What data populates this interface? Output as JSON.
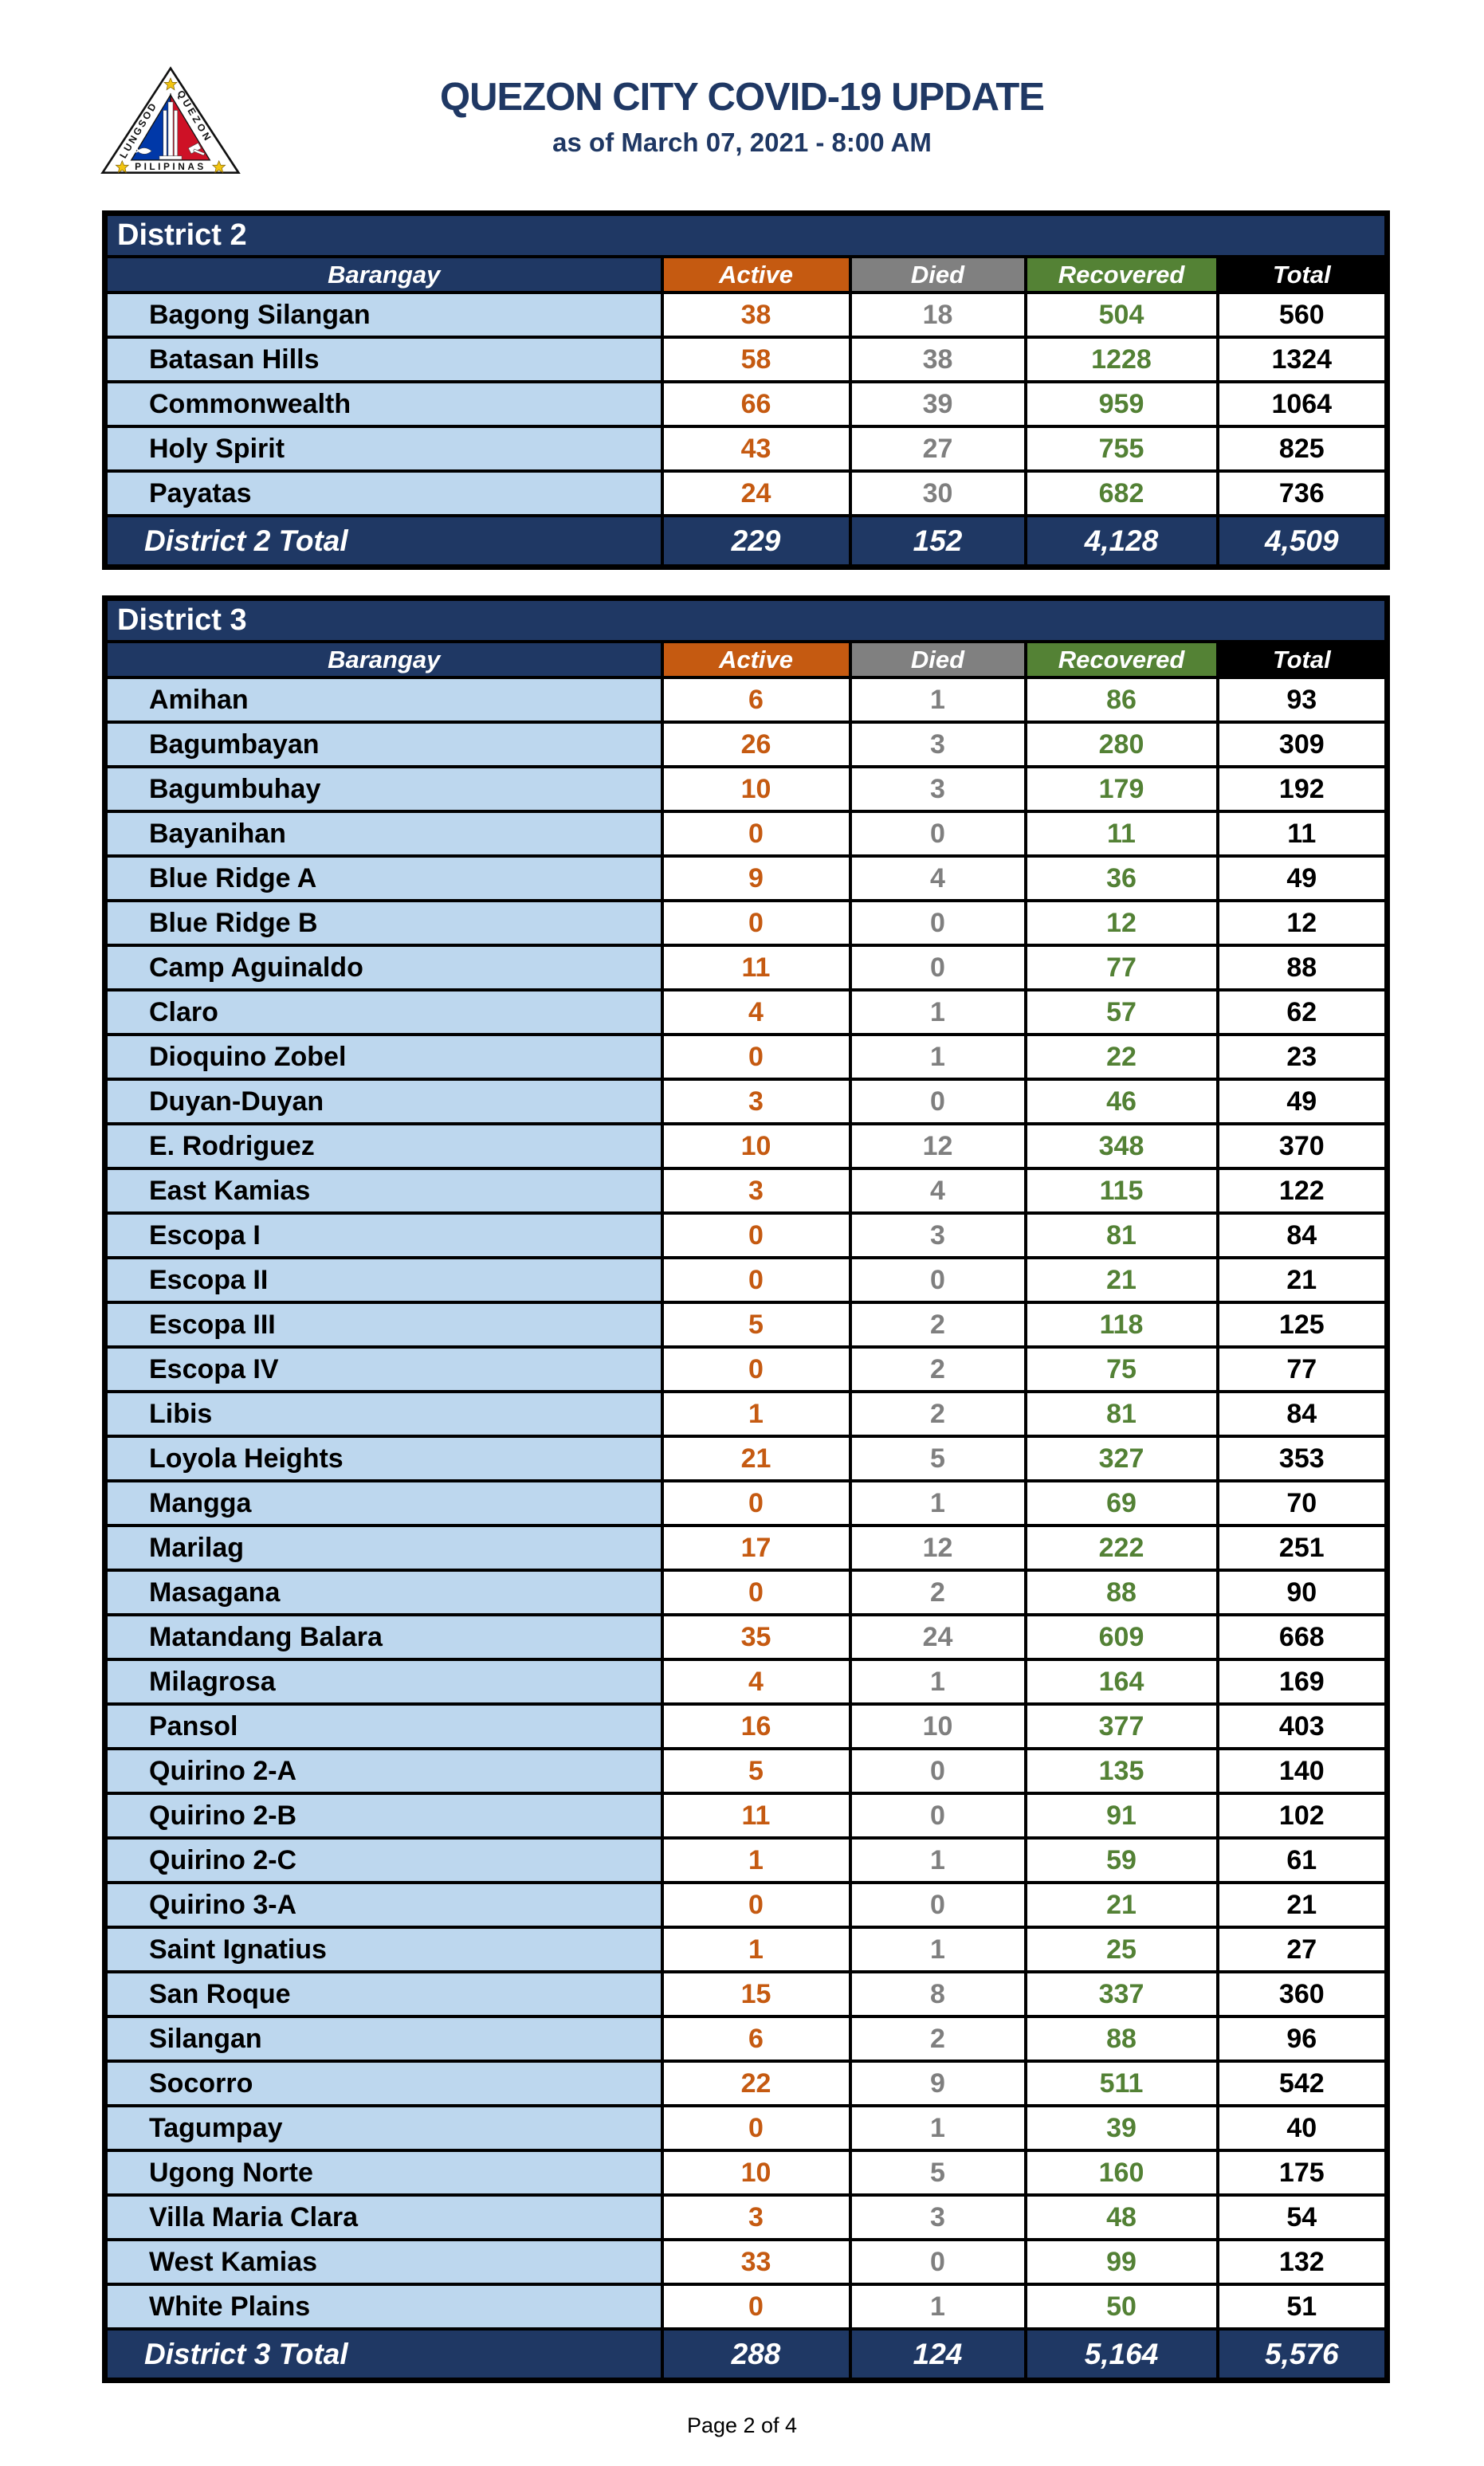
{
  "header": {
    "title": "QUEZON CITY COVID-19 UPDATE",
    "subtitle": "as of March 07, 2021 - 8:00 AM"
  },
  "logo": {
    "name": "quezon-city-seal",
    "text_left": "LUNGSOD",
    "text_right": "QUEZON",
    "text_bottom": "PILIPINAS"
  },
  "columns": [
    "Barangay",
    "Active",
    "Died",
    "Recovered",
    "Total"
  ],
  "colors": {
    "navy": "#1F3864",
    "header_bg": [
      "#1F3864",
      "#C55A11",
      "#808080",
      "#548235",
      "#000000"
    ],
    "value_colors": [
      "#C55A11",
      "#7F7F7F",
      "#538135",
      "#000000"
    ],
    "name_cell_bg": "#BDD7EE",
    "title_text": "#1F3864",
    "seal_blue": "#0038A8",
    "seal_red": "#CE1126",
    "seal_gold": "#F2C511"
  },
  "tables": [
    {
      "district": "District 2",
      "total_label": "District 2 Total",
      "rows": [
        [
          "Bagong Silangan",
          38,
          18,
          504,
          560
        ],
        [
          "Batasan Hills",
          58,
          38,
          1228,
          1324
        ],
        [
          "Commonwealth",
          66,
          39,
          959,
          1064
        ],
        [
          "Holy Spirit",
          43,
          27,
          755,
          825
        ],
        [
          "Payatas",
          24,
          30,
          682,
          736
        ]
      ],
      "totals": [
        "229",
        "152",
        "4,128",
        "4,509"
      ]
    },
    {
      "district": "District 3",
      "total_label": "District 3 Total",
      "rows": [
        [
          "Amihan",
          6,
          1,
          86,
          93
        ],
        [
          "Bagumbayan",
          26,
          3,
          280,
          309
        ],
        [
          "Bagumbuhay",
          10,
          3,
          179,
          192
        ],
        [
          "Bayanihan",
          0,
          0,
          11,
          11
        ],
        [
          "Blue Ridge A",
          9,
          4,
          36,
          49
        ],
        [
          "Blue Ridge B",
          0,
          0,
          12,
          12
        ],
        [
          "Camp Aguinaldo",
          11,
          0,
          77,
          88
        ],
        [
          "Claro",
          4,
          1,
          57,
          62
        ],
        [
          "Dioquino Zobel",
          0,
          1,
          22,
          23
        ],
        [
          "Duyan-Duyan",
          3,
          0,
          46,
          49
        ],
        [
          "E. Rodriguez",
          10,
          12,
          348,
          370
        ],
        [
          "East Kamias",
          3,
          4,
          115,
          122
        ],
        [
          "Escopa I",
          0,
          3,
          81,
          84
        ],
        [
          "Escopa II",
          0,
          0,
          21,
          21
        ],
        [
          "Escopa III",
          5,
          2,
          118,
          125
        ],
        [
          "Escopa IV",
          0,
          2,
          75,
          77
        ],
        [
          "Libis",
          1,
          2,
          81,
          84
        ],
        [
          "Loyola Heights",
          21,
          5,
          327,
          353
        ],
        [
          "Mangga",
          0,
          1,
          69,
          70
        ],
        [
          "Marilag",
          17,
          12,
          222,
          251
        ],
        [
          "Masagana",
          0,
          2,
          88,
          90
        ],
        [
          "Matandang Balara",
          35,
          24,
          609,
          668
        ],
        [
          "Milagrosa",
          4,
          1,
          164,
          169
        ],
        [
          "Pansol",
          16,
          10,
          377,
          403
        ],
        [
          "Quirino 2-A",
          5,
          0,
          135,
          140
        ],
        [
          "Quirino 2-B",
          11,
          0,
          91,
          102
        ],
        [
          "Quirino 2-C",
          1,
          1,
          59,
          61
        ],
        [
          "Quirino 3-A",
          0,
          0,
          21,
          21
        ],
        [
          "Saint Ignatius",
          1,
          1,
          25,
          27
        ],
        [
          "San Roque",
          15,
          8,
          337,
          360
        ],
        [
          "Silangan",
          6,
          2,
          88,
          96
        ],
        [
          "Socorro",
          22,
          9,
          511,
          542
        ],
        [
          "Tagumpay",
          0,
          1,
          39,
          40
        ],
        [
          "Ugong Norte",
          10,
          5,
          160,
          175
        ],
        [
          "Villa Maria Clara",
          3,
          3,
          48,
          54
        ],
        [
          "West Kamias",
          33,
          0,
          99,
          132
        ],
        [
          "White Plains",
          0,
          1,
          50,
          51
        ]
      ],
      "totals": [
        "288",
        "124",
        "5,164",
        "5,576"
      ]
    }
  ],
  "footer": {
    "page": "Page 2 of 4"
  }
}
